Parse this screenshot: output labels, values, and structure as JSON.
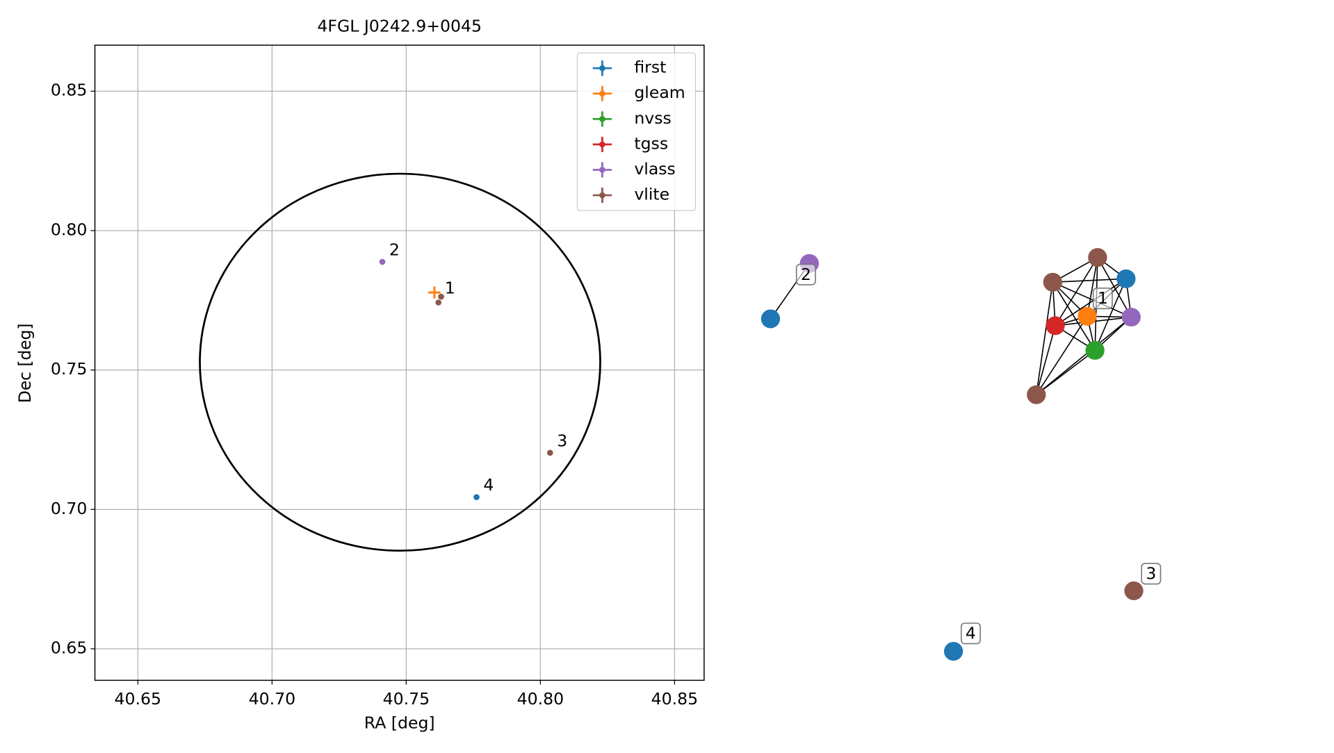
{
  "chart_data": {
    "type": "scatter",
    "title": "4FGL J0242.9+0045",
    "x_label": "RA [deg]",
    "y_label": "Dec [deg]",
    "xlim": [
      40.634,
      40.861
    ],
    "ylim": [
      0.6387,
      0.8665
    ],
    "xticks": [
      40.65,
      {
        "value": 40.7,
        "label": "40.70"
      },
      40.75,
      {
        "value": 40.8,
        "label": "40.80"
      },
      40.85
    ],
    "yticks": [
      0.65,
      {
        "value": 0.7,
        "label": "0.70"
      },
      0.75,
      {
        "value": 0.8,
        "label": "0.80"
      },
      0.85
    ],
    "grid": true,
    "legend": "upper right",
    "circle": {
      "ra": 40.7477,
      "dec": 0.7528,
      "ra_radius": 0.0746,
      "dec_radius": 0.0676
    },
    "series": [
      {
        "name": "first",
        "color": "#1f77b4",
        "x": [
          40.7762
        ],
        "values": [
          0.7044
        ]
      },
      {
        "name": "gleam",
        "color": "#ff7f0e",
        "x": [
          40.7605
        ],
        "values": [
          0.7778
        ]
      },
      {
        "name": "nvss",
        "color": "#2ca02c",
        "x": [],
        "values": []
      },
      {
        "name": "tgss",
        "color": "#d62728",
        "x": [],
        "values": []
      },
      {
        "name": "vlass",
        "color": "#9467bd",
        "x": [
          40.7411
        ],
        "values": [
          0.7888
        ]
      },
      {
        "name": "vlite",
        "color": "#8c564b",
        "x": [
          40.763,
          40.762,
          40.8036
        ],
        "values": [
          0.7763,
          0.7742,
          0.7203
        ]
      }
    ],
    "annotations": [
      "1",
      "2",
      "3",
      "4"
    ]
  },
  "graph": {
    "labels": [
      "1",
      "2",
      "3",
      "4"
    ]
  }
}
